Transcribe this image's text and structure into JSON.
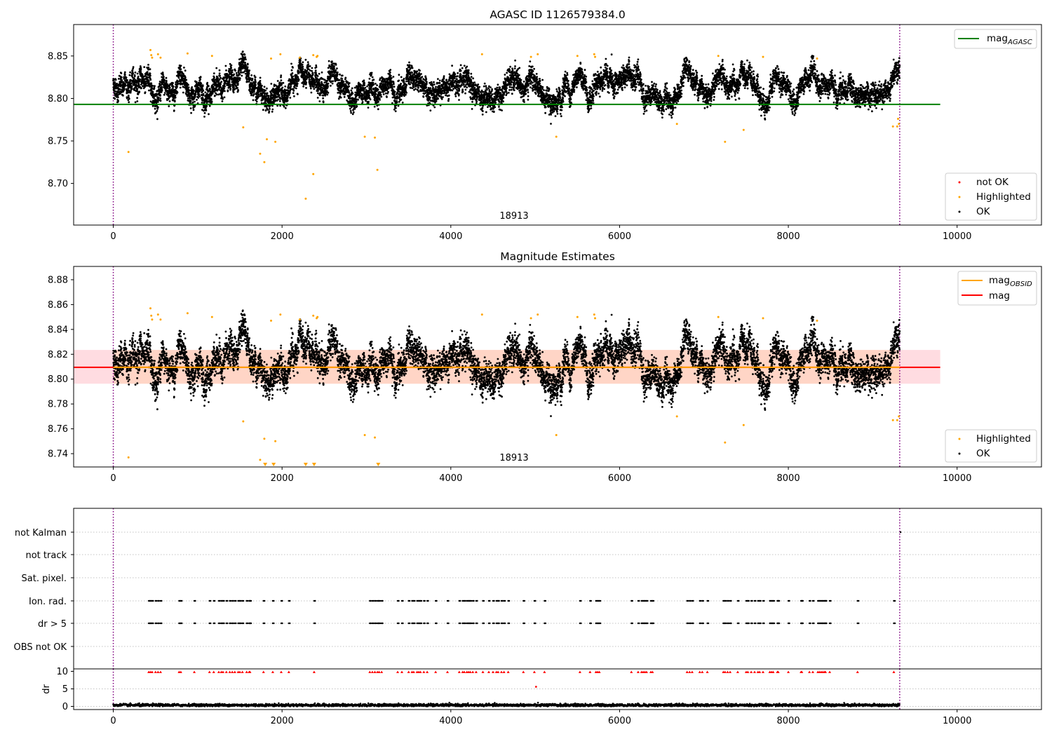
{
  "chart_data": [
    {
      "panel": "top",
      "type": "scatter",
      "title": "AGASC ID 1126579384.0",
      "xlim": [
        -470,
        11000
      ],
      "ylim": [
        8.651,
        8.887
      ],
      "xticks": [
        0,
        2000,
        4000,
        6000,
        8000,
        10000
      ],
      "xtick_labels": [
        "0",
        "2000",
        "4000",
        "6000",
        "8000",
        "10000"
      ],
      "yticks": [
        8.7,
        8.75,
        8.8,
        8.85
      ],
      "ytick_labels": [
        "8.70",
        "8.75",
        "8.80",
        "8.85"
      ],
      "obsid_annotation": {
        "text": "18913",
        "x": 4650
      },
      "vlines": [
        0,
        9320
      ],
      "hlines": [
        {
          "name": "mag_AGASC",
          "y": 8.793,
          "x": [
            -470,
            9800
          ],
          "color": "#008000"
        }
      ],
      "ok_points": {
        "n": 9320,
        "x_range": [
          0,
          9320
        ],
        "center": 8.812,
        "spread": 0.013,
        "color": "#000000"
      },
      "highlighted_points": {
        "color": "#ffa500",
        "x": [
          180,
          1540,
          1740,
          1790,
          1820,
          1920,
          2280,
          2370,
          2980,
          3100,
          3130,
          5250,
          6680,
          7250,
          7470,
          9240,
          9290,
          9310,
          9300,
          440,
          450,
          460,
          530,
          560,
          880,
          1170,
          1870,
          1980,
          2210,
          2370,
          2410,
          2420,
          4370,
          4950,
          5030,
          5500,
          5700,
          5710,
          7170,
          7700,
          8340
        ],
        "y": [
          8.737,
          8.766,
          8.735,
          8.725,
          8.752,
          8.749,
          8.682,
          8.711,
          8.755,
          8.754,
          8.716,
          8.755,
          8.77,
          8.749,
          8.763,
          8.767,
          8.767,
          8.77,
          8.776,
          8.857,
          8.851,
          8.848,
          8.852,
          8.848,
          8.853,
          8.85,
          8.847,
          8.852,
          8.848,
          8.851,
          8.849,
          8.85,
          8.852,
          8.849,
          8.852,
          8.85,
          8.852,
          8.849,
          8.85,
          8.849,
          8.847
        ]
      },
      "legend_lines": [
        {
          "label": "mag",
          "subscript": "AGASC",
          "color": "#008000"
        }
      ],
      "legend_points": [
        {
          "label": "not OK",
          "color": "#ff0000"
        },
        {
          "label": "Highlighted",
          "color": "#ffa500"
        },
        {
          "label": "OK",
          "color": "#000000"
        }
      ]
    },
    {
      "panel": "middle",
      "type": "scatter",
      "title": "Magnitude Estimates",
      "xlim": [
        -470,
        11000
      ],
      "ylim": [
        8.7293,
        8.8907
      ],
      "xticks": [
        0,
        2000,
        4000,
        6000,
        8000,
        10000
      ],
      "xtick_labels": [
        "0",
        "2000",
        "4000",
        "6000",
        "8000",
        "10000"
      ],
      "yticks": [
        8.74,
        8.76,
        8.78,
        8.8,
        8.82,
        8.84,
        8.86,
        8.88
      ],
      "ytick_labels": [
        "8.74",
        "8.76",
        "8.78",
        "8.80",
        "8.82",
        "8.84",
        "8.86",
        "8.88"
      ],
      "obsid_annotation": {
        "text": "18913",
        "x": 4650
      },
      "vlines": [
        0,
        9320
      ],
      "hlines": [
        {
          "name": "mag",
          "y": 8.8095,
          "x": [
            -470,
            9800
          ],
          "color": "#ff0000"
        },
        {
          "name": "mag_OBSID",
          "y": 8.8095,
          "x": [
            0,
            9320
          ],
          "color": "#ffa500"
        }
      ],
      "bands": [
        {
          "name": "mag band",
          "y": [
            8.7963,
            8.8235
          ],
          "x": [
            -470,
            9800
          ],
          "color": "#ffc0c8"
        },
        {
          "name": "mag_OBSID band",
          "y": [
            8.7963,
            8.8235
          ],
          "x": [
            0,
            9320
          ],
          "color": "#ffd0b0"
        }
      ],
      "ok_points": {
        "n": 9320,
        "x_range": [
          0,
          9320
        ],
        "center": 8.812,
        "spread": 0.013,
        "color": "#000000"
      },
      "highlighted_points": {
        "color": "#ffa500",
        "x": [
          180,
          1540,
          1740,
          1790,
          1920,
          2980,
          3100,
          5250,
          6680,
          7250,
          7470,
          9240,
          9290,
          9310,
          440,
          450,
          460,
          530,
          560,
          880,
          1170,
          1870,
          1980,
          2210,
          2370,
          2410,
          2420,
          4370,
          4950,
          5030,
          5500,
          5700,
          5710,
          7170,
          7700,
          8340
        ],
        "y": [
          8.737,
          8.766,
          8.735,
          8.752,
          8.75,
          8.755,
          8.753,
          8.755,
          8.77,
          8.749,
          8.763,
          8.767,
          8.767,
          8.77,
          8.857,
          8.851,
          8.848,
          8.852,
          8.848,
          8.853,
          8.85,
          8.847,
          8.852,
          8.848,
          8.851,
          8.849,
          8.85,
          8.852,
          8.849,
          8.852,
          8.85,
          8.852,
          8.849,
          8.85,
          8.849,
          8.847
        ]
      },
      "clipped_low_markers": {
        "color": "#ffa500",
        "x": [
          1800,
          1900,
          2280,
          2380,
          3140
        ]
      },
      "legend_lines": [
        {
          "label": "mag",
          "subscript": "OBSID",
          "color": "#ffa500"
        },
        {
          "label": "mag",
          "subscript": "",
          "color": "#ff0000"
        }
      ],
      "legend_points": [
        {
          "label": "Highlighted",
          "color": "#ffa500"
        },
        {
          "label": "OK",
          "color": "#000000"
        }
      ]
    },
    {
      "panel": "flags",
      "type": "scatter",
      "xlim": [
        -470,
        11000
      ],
      "categories": [
        "not Kalman",
        "not track",
        "Sat. pixel.",
        "Ion. rad.",
        "dr > 5",
        "OBS not OK"
      ],
      "vlines": [
        0,
        9320
      ],
      "flag_times": [
        420,
        440,
        460,
        500,
        530,
        560,
        780,
        800,
        960,
        1140,
        1190,
        1250,
        1280,
        1300,
        1340,
        1380,
        1410,
        1440,
        1480,
        1500,
        1530,
        1580,
        1610,
        1620,
        1780,
        1890,
        1990,
        2080,
        2380,
        3040,
        3070,
        3100,
        3130,
        3150,
        3180,
        3370,
        3420,
        3500,
        3540,
        3560,
        3600,
        3620,
        3640,
        3680,
        3720,
        3820,
        3960,
        4100,
        4140,
        4160,
        4190,
        4210,
        4230,
        4260,
        4300,
        4380,
        4450,
        4500,
        4540,
        4560,
        4600,
        4630,
        4680,
        4860,
        4990,
        5110,
        5530,
        5650,
        5720,
        5740,
        5760,
        6140,
        6220,
        6260,
        6280,
        6300,
        6320,
        6370,
        6390,
        6800,
        6830,
        6860,
        6950,
        6980,
        7040,
        7230,
        7250,
        7280,
        7310,
        7400,
        7500,
        7520,
        7560,
        7600,
        7640,
        7660,
        7700,
        7780,
        7800,
        7820,
        7870,
        7880,
        8000,
        8150,
        8160,
        8250,
        8290,
        8350,
        8370,
        8390,
        8410,
        8430,
        8440,
        8490,
        8820,
        9250
      ],
      "not_kalman_times": [
        9330
      ]
    },
    {
      "panel": "dr",
      "type": "scatter",
      "ylabel": "dr",
      "xlim": [
        -470,
        11000
      ],
      "ylim": [
        -0.9,
        10.7
      ],
      "xticks": [
        0,
        2000,
        4000,
        6000,
        8000,
        10000
      ],
      "xtick_labels": [
        "0",
        "2000",
        "4000",
        "6000",
        "8000",
        "10000"
      ],
      "yticks": [
        0,
        5,
        10
      ],
      "ytick_labels": [
        "0",
        "5",
        "10"
      ],
      "vlines": [
        0,
        9320
      ],
      "outlier": {
        "x": 5010,
        "y": 5.6
      },
      "clipped_top_value": 10,
      "clipped_color": "#ff0000",
      "dr_points": {
        "n": 9320,
        "x_range": [
          0,
          9320
        ],
        "center": 0.35,
        "spread": 0.2,
        "color": "#000000"
      }
    }
  ]
}
